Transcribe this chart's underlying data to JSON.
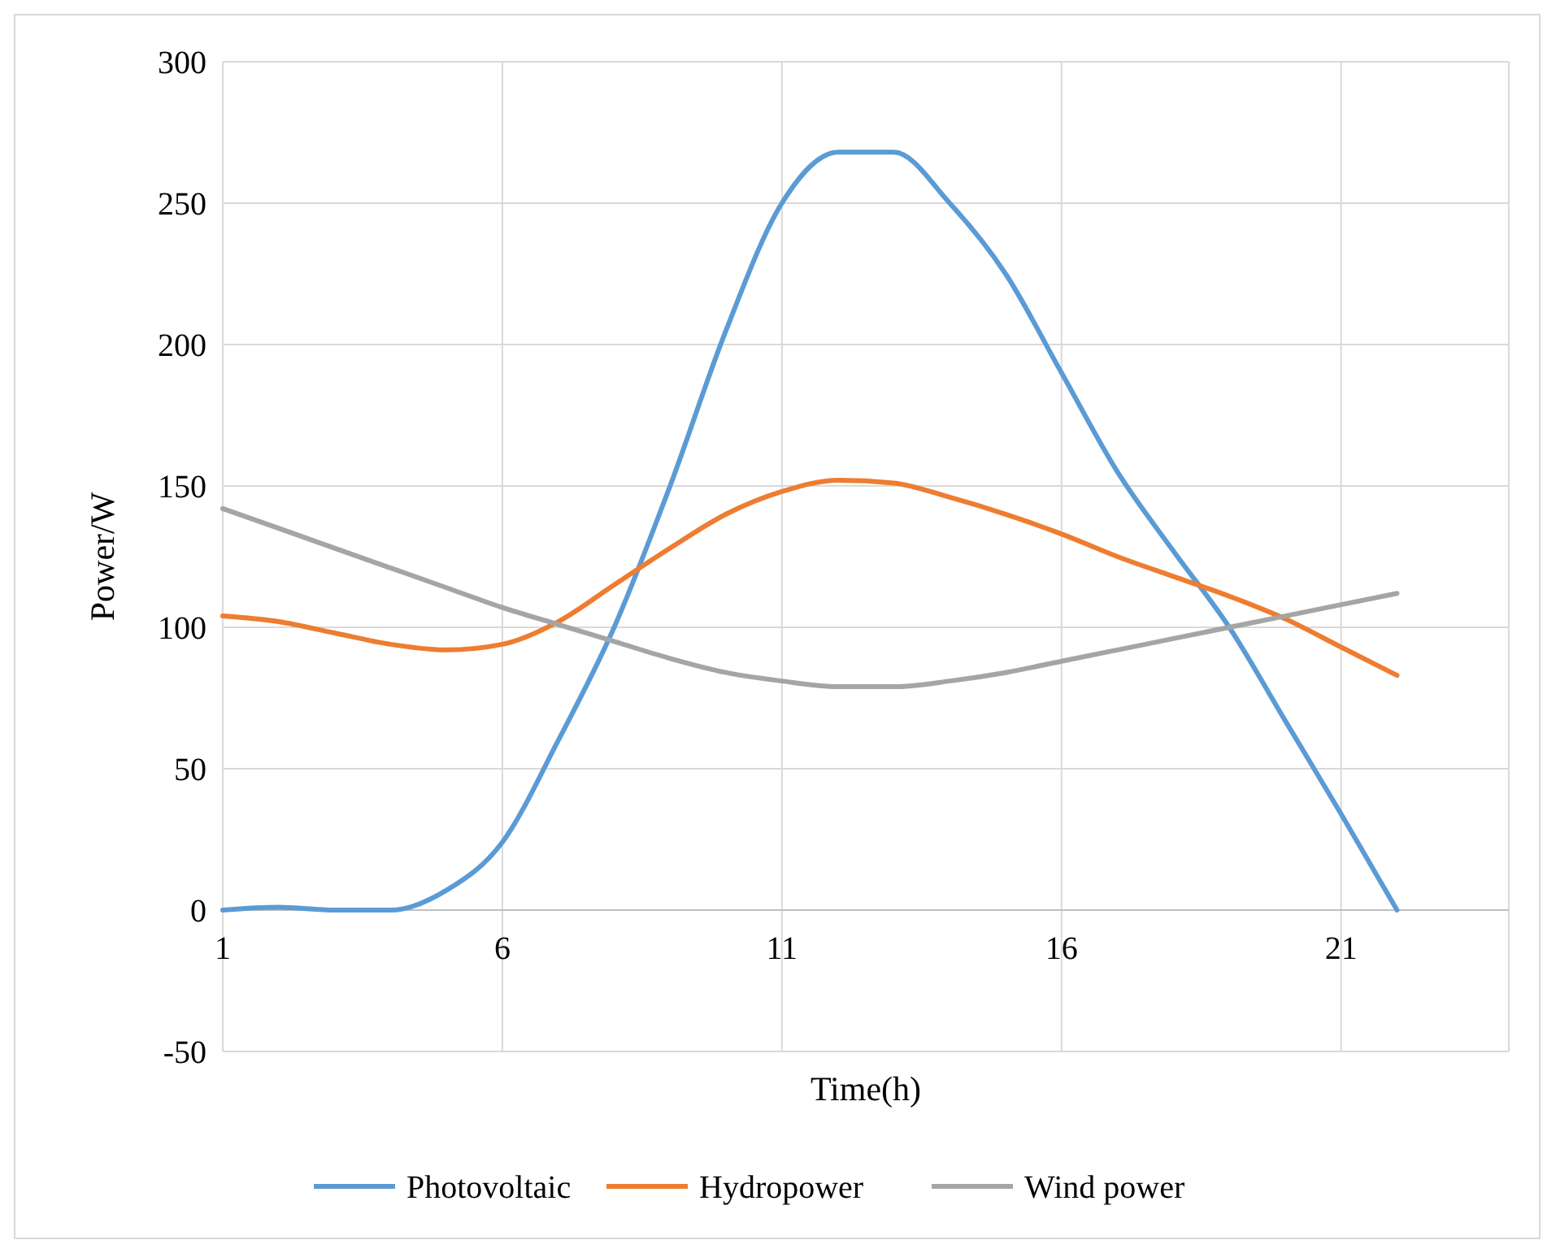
{
  "chart_data": {
    "type": "line",
    "xlabel": "Time(h)",
    "ylabel": "Power/W",
    "x": [
      1,
      2,
      3,
      4,
      5,
      6,
      7,
      8,
      9,
      10,
      11,
      12,
      13,
      14,
      15,
      16,
      17,
      18,
      19,
      20,
      21,
      22
    ],
    "xlim": [
      1,
      24
    ],
    "xticks": [
      1,
      6,
      11,
      16,
      21
    ],
    "ylim": [
      -50,
      300
    ],
    "yticks": [
      -50,
      0,
      50,
      100,
      150,
      200,
      250,
      300
    ],
    "grid": true,
    "legend": "bottom",
    "marker": "none",
    "line_style": "solid",
    "series": [
      {
        "name": "Photovoltaic",
        "color": "#5b9bd5",
        "values": [
          0,
          1,
          0,
          0,
          7,
          24,
          60,
          100,
          150,
          205,
          250,
          268,
          268,
          250,
          225,
          190,
          155,
          127,
          100,
          67,
          34,
          0
        ]
      },
      {
        "name": "Hydropower",
        "color": "#ed7d31",
        "values": [
          104,
          102,
          98,
          94,
          92,
          94,
          102,
          115,
          128,
          140,
          148,
          152,
          151,
          146,
          140,
          133,
          125,
          118,
          111,
          103,
          93,
          83
        ]
      },
      {
        "name": "Wind power",
        "color": "#a5a5a5",
        "values": [
          142,
          135,
          128,
          121,
          114,
          107,
          101,
          95,
          89,
          84,
          81,
          79,
          79,
          81,
          84,
          88,
          92,
          96,
          100,
          104,
          108,
          112
        ]
      }
    ]
  }
}
